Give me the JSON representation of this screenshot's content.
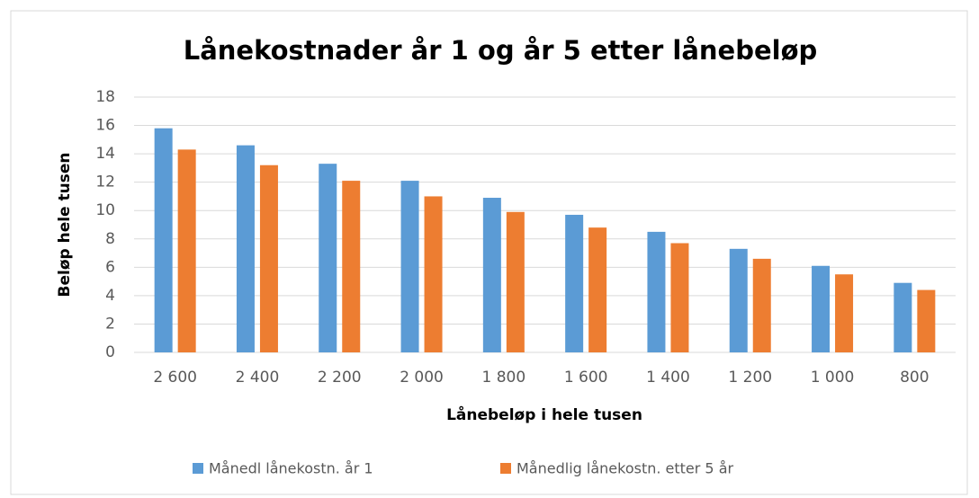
{
  "chart_data": {
    "type": "bar",
    "title": "Lånekostnader år 1 og år 5 etter lånebeløp",
    "x_label": "Lånebeløp i hele tusen",
    "y_label": "Beløp hele tusen",
    "categories": [
      "2 600",
      "2 400",
      "2 200",
      "2 000",
      "1 800",
      "1 600",
      "1 400",
      "1 200",
      "1 000",
      "800"
    ],
    "series": [
      {
        "name": "Månedl lånekostn. år 1",
        "color": "#5b9bd5",
        "values": [
          15.8,
          14.6,
          13.3,
          12.1,
          10.9,
          9.7,
          8.5,
          7.3,
          6.1,
          4.9
        ]
      },
      {
        "name": "Månedlig lånekostn. etter 5 år",
        "color": "#ed7d31",
        "values": [
          14.3,
          13.2,
          12.1,
          11.0,
          9.9,
          8.8,
          7.7,
          6.6,
          5.5,
          4.4
        ]
      }
    ],
    "ylim": [
      0,
      18
    ],
    "yticks": [
      0,
      2,
      4,
      6,
      8,
      10,
      12,
      14,
      16,
      18
    ],
    "grid": true,
    "legend": "bottom"
  }
}
